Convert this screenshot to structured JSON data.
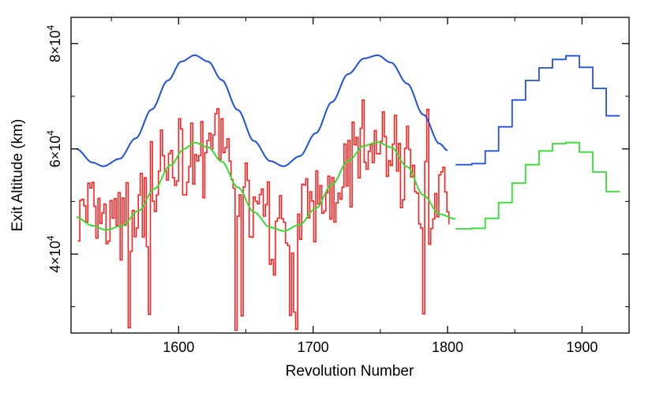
{
  "chart_data": {
    "type": "line",
    "xlabel": "Revolution Number",
    "ylabel": "Exit Altitude (km)",
    "xlim": [
      1520,
      1935
    ],
    "ylim": [
      25000,
      85000
    ],
    "x_ticks": [
      1600,
      1700,
      1800,
      1900
    ],
    "x_tick_labels": [
      "1600",
      "1700",
      "1800",
      "1900"
    ],
    "y_ticks": [
      40000,
      60000,
      80000
    ],
    "y_tick_labels": [
      {
        "mantissa": "4×10",
        "exp": "4"
      },
      {
        "mantissa": "6×10",
        "exp": "4"
      },
      {
        "mantissa": "8×10",
        "exp": "4"
      }
    ],
    "grid": false,
    "colors": {
      "measured": "#ff2020",
      "upper_model": "#2050e0",
      "lower_model": "#33dd33"
    },
    "series": [
      {
        "key": "upper_model",
        "style": "line",
        "points": [
          [
            1524,
            60000
          ],
          [
            1536,
            57400
          ],
          [
            1544,
            56700
          ],
          [
            1556,
            58100
          ],
          [
            1568,
            62000
          ],
          [
            1580,
            67500
          ],
          [
            1592,
            73000
          ],
          [
            1602,
            76600
          ],
          [
            1612,
            77800
          ],
          [
            1622,
            76600
          ],
          [
            1632,
            73100
          ],
          [
            1644,
            67400
          ],
          [
            1656,
            61500
          ],
          [
            1668,
            57700
          ],
          [
            1678,
            56700
          ],
          [
            1690,
            58600
          ],
          [
            1702,
            63000
          ],
          [
            1714,
            68900
          ],
          [
            1726,
            74200
          ],
          [
            1738,
            77200
          ],
          [
            1748,
            77800
          ],
          [
            1758,
            76400
          ],
          [
            1770,
            72400
          ],
          [
            1782,
            66500
          ],
          [
            1794,
            61000
          ],
          [
            1800,
            59700
          ]
        ]
      },
      {
        "key": "lower_model",
        "style": "line",
        "points": [
          [
            1524,
            47000
          ],
          [
            1536,
            45400
          ],
          [
            1546,
            44600
          ],
          [
            1558,
            45400
          ],
          [
            1570,
            48200
          ],
          [
            1582,
            52400
          ],
          [
            1594,
            56900
          ],
          [
            1604,
            60000
          ],
          [
            1612,
            61200
          ],
          [
            1622,
            60300
          ],
          [
            1632,
            57600
          ],
          [
            1644,
            52700
          ],
          [
            1656,
            48000
          ],
          [
            1668,
            45100
          ],
          [
            1678,
            44400
          ],
          [
            1690,
            45600
          ],
          [
            1702,
            48700
          ],
          [
            1714,
            53200
          ],
          [
            1726,
            57700
          ],
          [
            1738,
            60600
          ],
          [
            1748,
            61300
          ],
          [
            1758,
            60300
          ],
          [
            1770,
            56600
          ],
          [
            1782,
            51200
          ],
          [
            1794,
            47600
          ],
          [
            1806,
            46700
          ]
        ]
      },
      {
        "key": "upper_model_step",
        "style": "step",
        "points": [
          [
            1806,
            57000
          ],
          [
            1818,
            57200
          ],
          [
            1828,
            59600
          ],
          [
            1838,
            64200
          ],
          [
            1848,
            69300
          ],
          [
            1858,
            73000
          ],
          [
            1868,
            75400
          ],
          [
            1878,
            77000
          ],
          [
            1888,
            77700
          ],
          [
            1898,
            75500
          ],
          [
            1908,
            71500
          ],
          [
            1918,
            66300
          ],
          [
            1928,
            66300
          ]
        ]
      },
      {
        "key": "lower_model_step",
        "style": "step",
        "points": [
          [
            1806,
            44800
          ],
          [
            1818,
            44900
          ],
          [
            1828,
            46800
          ],
          [
            1838,
            49800
          ],
          [
            1848,
            53500
          ],
          [
            1858,
            57000
          ],
          [
            1868,
            59600
          ],
          [
            1878,
            61000
          ],
          [
            1888,
            61200
          ],
          [
            1898,
            59400
          ],
          [
            1908,
            55600
          ],
          [
            1918,
            51900
          ],
          [
            1928,
            51900
          ]
        ]
      },
      {
        "key": "measured",
        "style": "noisy",
        "x_start": 1525,
        "x_end": 1801,
        "step": 1.5,
        "seed": 7
      }
    ]
  }
}
